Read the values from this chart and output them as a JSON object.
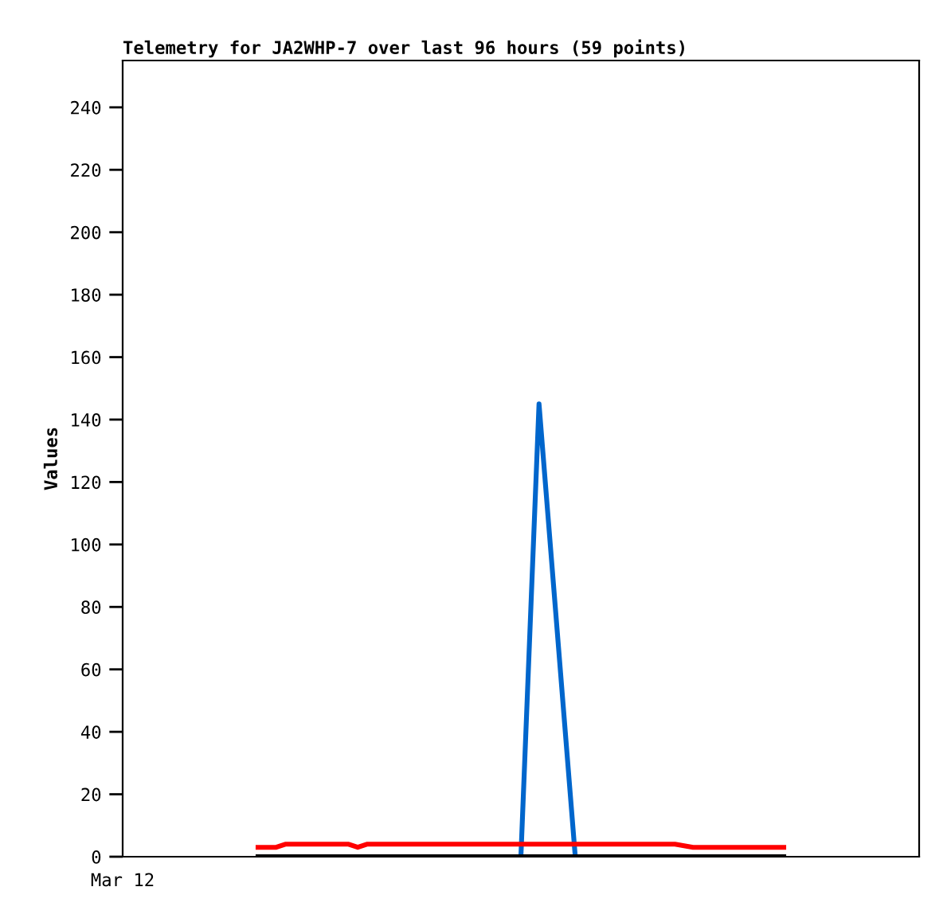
{
  "chart_data": {
    "type": "line",
    "title": "Telemetry for JA2WHP-7 over last 96 hours (59 points)",
    "ylabel": "Values",
    "annotations": [
      "Mar 12"
    ],
    "categories": [
      null,
      null,
      null,
      null,
      null,
      null,
      null,
      null,
      null,
      null,
      null,
      null,
      null,
      null,
      null,
      null,
      null,
      null,
      null,
      null,
      null,
      null,
      null,
      null,
      null,
      null,
      null,
      null,
      null,
      null,
      null,
      null,
      null,
      null,
      null,
      null,
      null,
      null,
      null,
      null,
      null,
      null,
      null,
      null,
      null,
      null,
      null,
      null,
      null,
      null,
      null,
      null,
      null,
      null,
      null,
      null,
      null,
      null,
      null
    ],
    "ylim": [
      0,
      255
    ],
    "yticks": [
      0,
      20,
      40,
      60,
      80,
      100,
      120,
      140,
      160,
      180,
      200,
      220,
      240
    ],
    "grid": false,
    "legend": false,
    "marker": "none",
    "line_style": "solid",
    "series": [
      {
        "color": "#000000",
        "values": [
          0,
          0,
          0,
          0,
          0,
          0,
          0,
          0,
          0,
          0,
          0,
          0,
          0,
          0,
          0,
          0,
          0,
          0,
          0,
          0,
          0,
          0,
          0,
          0,
          0,
          0,
          0,
          0,
          0,
          0,
          0,
          0,
          0,
          0,
          0,
          0,
          0,
          0,
          0,
          0,
          0,
          0,
          0,
          0,
          0,
          0,
          0,
          0,
          0,
          0,
          0,
          0,
          0,
          0,
          0,
          0,
          0,
          0,
          0
        ]
      },
      {
        "color": "#ff0000",
        "values": [
          3,
          3,
          3,
          4,
          4,
          4,
          4,
          4,
          4,
          4,
          4,
          3,
          4,
          4,
          4,
          4,
          4,
          4,
          4,
          4,
          4,
          4,
          4,
          4,
          4,
          4,
          4,
          4,
          4,
          4,
          4,
          4,
          4,
          4,
          4,
          4,
          4,
          4,
          4,
          4,
          4,
          4,
          4,
          4,
          4,
          4,
          4,
          3.5,
          3,
          3,
          3,
          3,
          3,
          3,
          3,
          3,
          3,
          3,
          3
        ]
      },
      {
        "color": "#0066cc",
        "values": [
          null,
          null,
          null,
          null,
          null,
          null,
          null,
          null,
          null,
          null,
          null,
          null,
          null,
          null,
          null,
          null,
          null,
          null,
          null,
          null,
          null,
          null,
          null,
          null,
          null,
          null,
          null,
          null,
          null,
          0,
          null,
          145,
          null,
          null,
          null,
          0,
          null,
          null,
          null,
          null,
          null,
          null,
          null,
          null,
          null,
          null,
          null,
          null,
          null,
          null,
          null,
          null,
          null,
          null,
          null,
          null,
          null,
          null,
          null
        ]
      }
    ]
  }
}
